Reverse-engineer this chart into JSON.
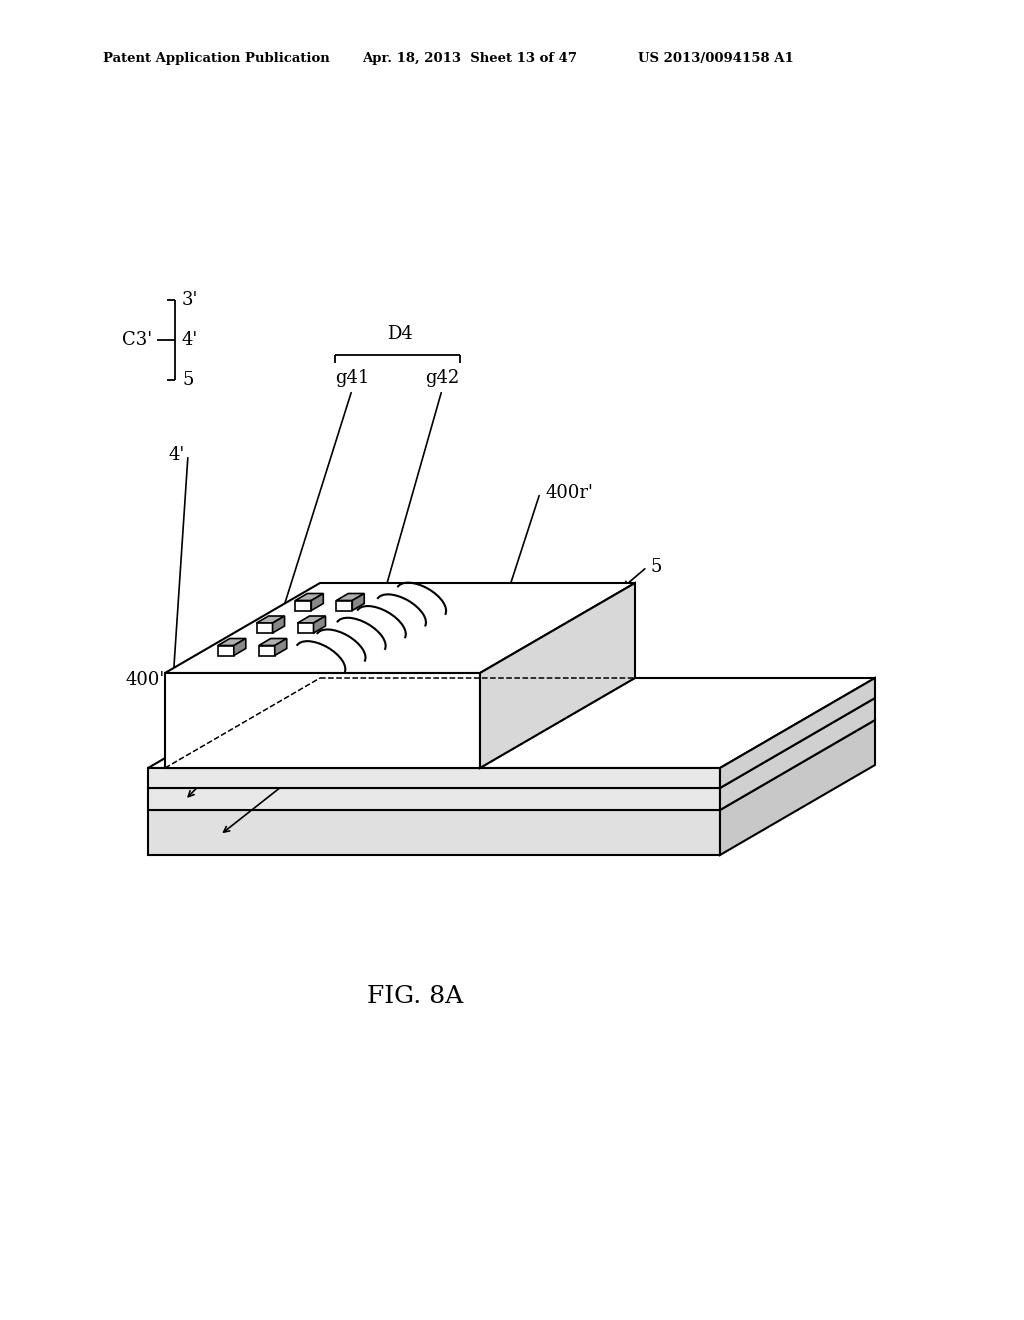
{
  "bg_color": "#ffffff",
  "header_left": "Patent Application Publication",
  "header_mid": "Apr. 18, 2013  Sheet 13 of 47",
  "header_right": "US 2013/0094158 A1",
  "fig_label": "FIG. 8A",
  "header_fontsize": 9.5,
  "label_fontsize": 13,
  "fig_label_fontsize": 18
}
